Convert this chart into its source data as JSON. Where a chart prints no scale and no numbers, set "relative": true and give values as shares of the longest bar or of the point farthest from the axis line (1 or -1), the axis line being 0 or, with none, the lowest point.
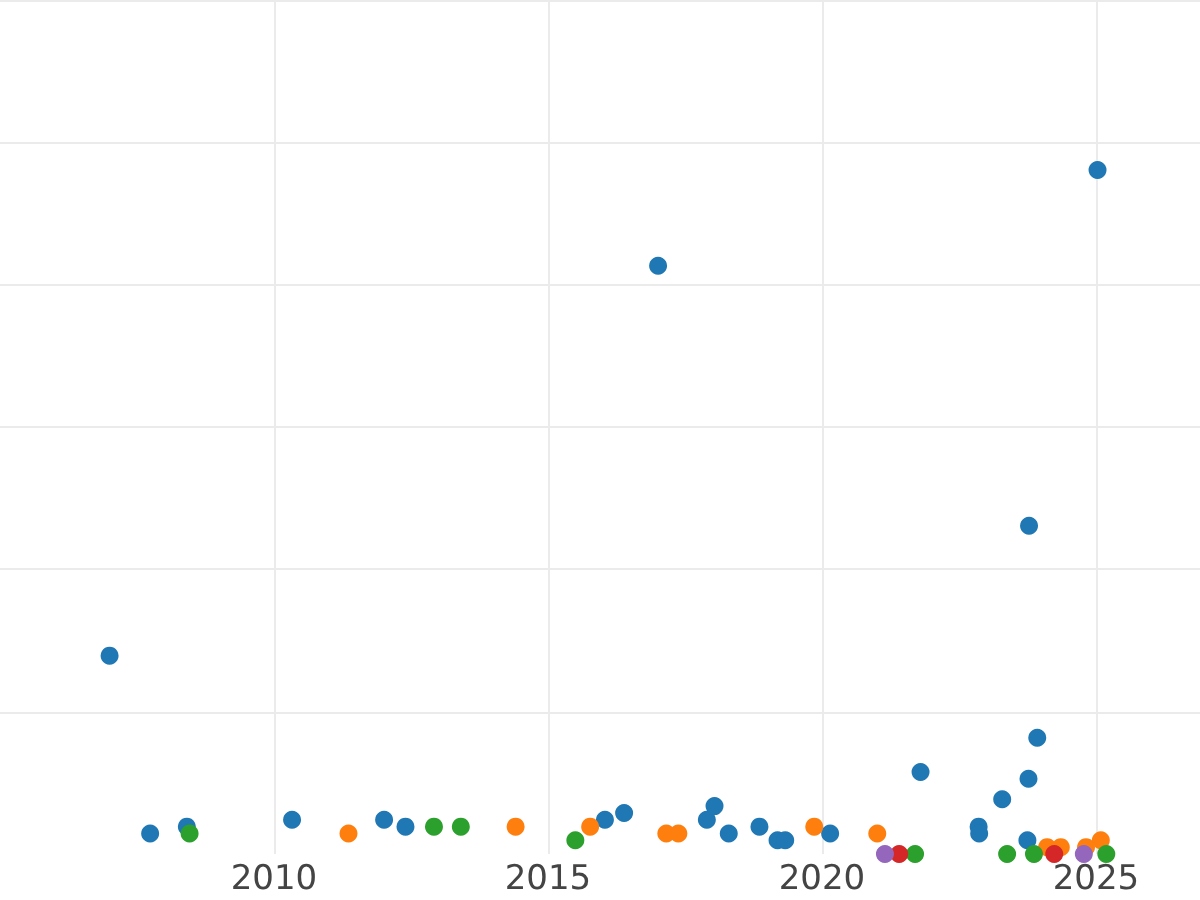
{
  "chart_data": {
    "type": "scatter",
    "relative": true,
    "grid": true,
    "marker": "circle",
    "tick_labels": "x",
    "xlim": [
      2005.0,
      2026.9
    ],
    "xticks": [
      2010,
      2015,
      2020,
      2025
    ],
    "series": [
      {
        "color": "#1f77b4",
        "x": [
          2007.0,
          2007.74,
          2008.41,
          2010.33,
          2012.01,
          2012.4,
          2016.04,
          2016.39,
          2017.01,
          2017.9,
          2018.04,
          2018.3,
          2018.86,
          2019.19,
          2019.33,
          2020.15,
          2021.8,
          2022.86,
          2022.87,
          2023.29,
          2023.75,
          2023.77,
          2023.78,
          2023.93,
          2025.03
        ],
        "values": [
          0.29,
          0.03,
          0.04,
          0.05,
          0.05,
          0.04,
          0.05,
          0.06,
          0.86,
          0.05,
          0.07,
          0.03,
          0.04,
          0.02,
          0.02,
          0.03,
          0.12,
          0.04,
          0.03,
          0.08,
          0.02,
          0.11,
          0.48,
          0.17,
          1
        ]
      },
      {
        "color": "#ff7f0e",
        "x": [
          2011.36,
          2014.41,
          2015.77,
          2017.16,
          2017.38,
          2019.86,
          2021.01,
          2024.11,
          2024.36,
          2024.82,
          2025.09
        ],
        "values": [
          0.03,
          0.04,
          0.04,
          0.03,
          0.03,
          0.04,
          0.03,
          0.01,
          0.01,
          0.01,
          0.02
        ]
      },
      {
        "color": "#2ca02c",
        "x": [
          2008.46,
          2012.92,
          2013.41,
          2015.5,
          2021.7,
          2023.38,
          2023.87,
          2025.19
        ],
        "values": [
          0.03,
          0.04,
          0.04,
          0.02,
          0,
          0,
          0,
          0
        ]
      },
      {
        "color": "#d62728",
        "x": [
          2021.41,
          2024.24
        ],
        "values": [
          0,
          0
        ]
      },
      {
        "color": "#9467bd",
        "x": [
          2021.15,
          2024.78
        ],
        "values": [
          0,
          0
        ]
      }
    ]
  }
}
